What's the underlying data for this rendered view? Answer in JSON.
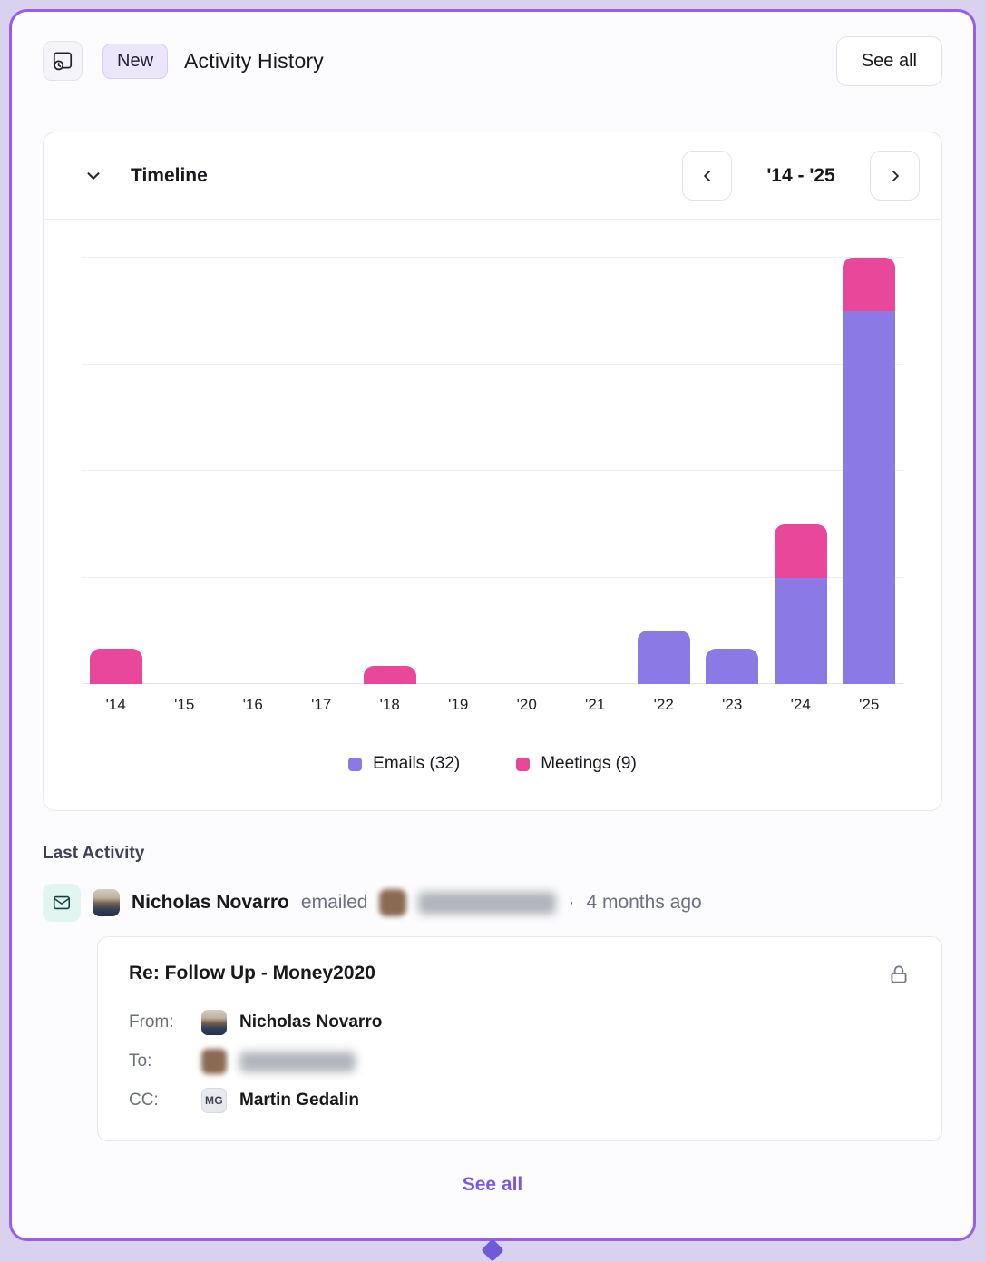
{
  "header": {
    "badge": "New",
    "title": "Activity History",
    "see_all": "See all"
  },
  "timeline": {
    "title": "Timeline",
    "range": "'14 - '25"
  },
  "chart_data": {
    "type": "bar",
    "stacked": true,
    "title": "",
    "xlabel": "",
    "ylabel": "",
    "categories": [
      "'14",
      "'15",
      "'16",
      "'17",
      "'18",
      "'19",
      "'20",
      "'21",
      "'22",
      "'23",
      "'24",
      "'25"
    ],
    "series": [
      {
        "name": "Emails (32)",
        "total": 32,
        "color": "#8b79e6",
        "values": [
          0,
          0,
          0,
          0,
          0,
          0,
          0,
          0,
          3,
          2,
          6,
          21
        ]
      },
      {
        "name": "Meetings (9)",
        "total": 9,
        "color": "#e8479a",
        "values": [
          2,
          0,
          0,
          0,
          1,
          0,
          0,
          0,
          0,
          0,
          3,
          3
        ]
      }
    ],
    "ylim": [
      0,
      24
    ],
    "gridlines": [
      0,
      6,
      12,
      18,
      24
    ],
    "grid": true,
    "legend_position": "bottom"
  },
  "last_activity": {
    "label": "Last Activity",
    "actor": "Nicholas Novarro",
    "action": "emailed",
    "target_redacted": true,
    "dot": "·",
    "time": "4 months ago",
    "email": {
      "subject": "Re: Follow Up - Money2020",
      "locked": true,
      "from_label": "From:",
      "from": "Nicholas Novarro",
      "to_label": "To:",
      "to_redacted": true,
      "cc_label": "CC:",
      "cc": "Martin Gedalin",
      "cc_initials": "MG"
    }
  },
  "footer": {
    "see_all": "See all"
  }
}
